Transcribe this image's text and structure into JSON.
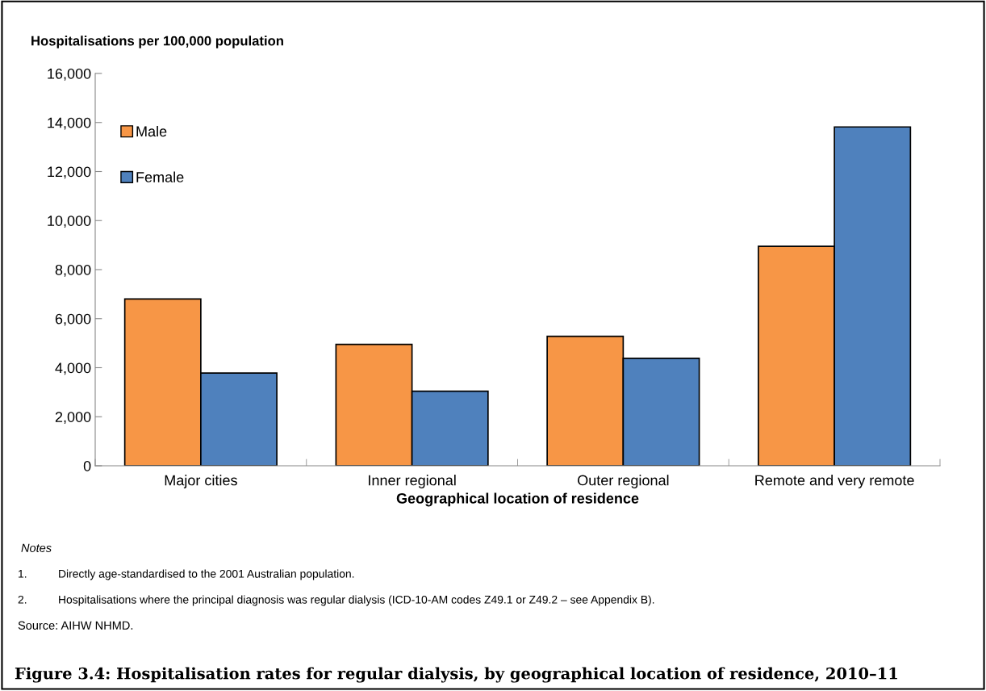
{
  "chart_data": {
    "type": "bar",
    "title": "Figure 3.4: Hospitalisation rates for regular dialysis, by geographical location of residence, 2010–11",
    "ylabel": "Hospitalisations per 100,000 population",
    "xlabel": "Geographical location of residence",
    "categories": [
      "Major cities",
      "Inner regional",
      "Outer regional",
      "Remote and very remote"
    ],
    "series": [
      {
        "name": "Male",
        "color": "#f79646",
        "values": [
          6800,
          4950,
          5280,
          8950
        ]
      },
      {
        "name": "Female",
        "color": "#4f81bd",
        "values": [
          3780,
          3040,
          4380,
          13820
        ]
      }
    ],
    "ylim": [
      0,
      16000
    ],
    "yticks": [
      {
        "value": 0,
        "label": "0"
      },
      {
        "value": 2000,
        "label": "2,000"
      },
      {
        "value": 4000,
        "label": "4,000"
      },
      {
        "value": 6000,
        "label": "6,000"
      },
      {
        "value": 8000,
        "label": "8,000"
      },
      {
        "value": 10000,
        "label": "10,000"
      },
      {
        "value": 12000,
        "label": "12,000"
      },
      {
        "value": 14000,
        "label": "14,000"
      },
      {
        "value": 16000,
        "label": "16,000"
      }
    ],
    "grid": false,
    "legend": "top left",
    "annotations": [
      "Notes",
      "1.\tDirectly age-standardised to the 2001 Australian population.",
      "2.\tHospitalisations where the principal diagnosis was regular dialysis (ICD-10-AM codes Z49.1 or Z49.2 – see Appendix B).",
      "Source: AIHW NHMD."
    ]
  }
}
